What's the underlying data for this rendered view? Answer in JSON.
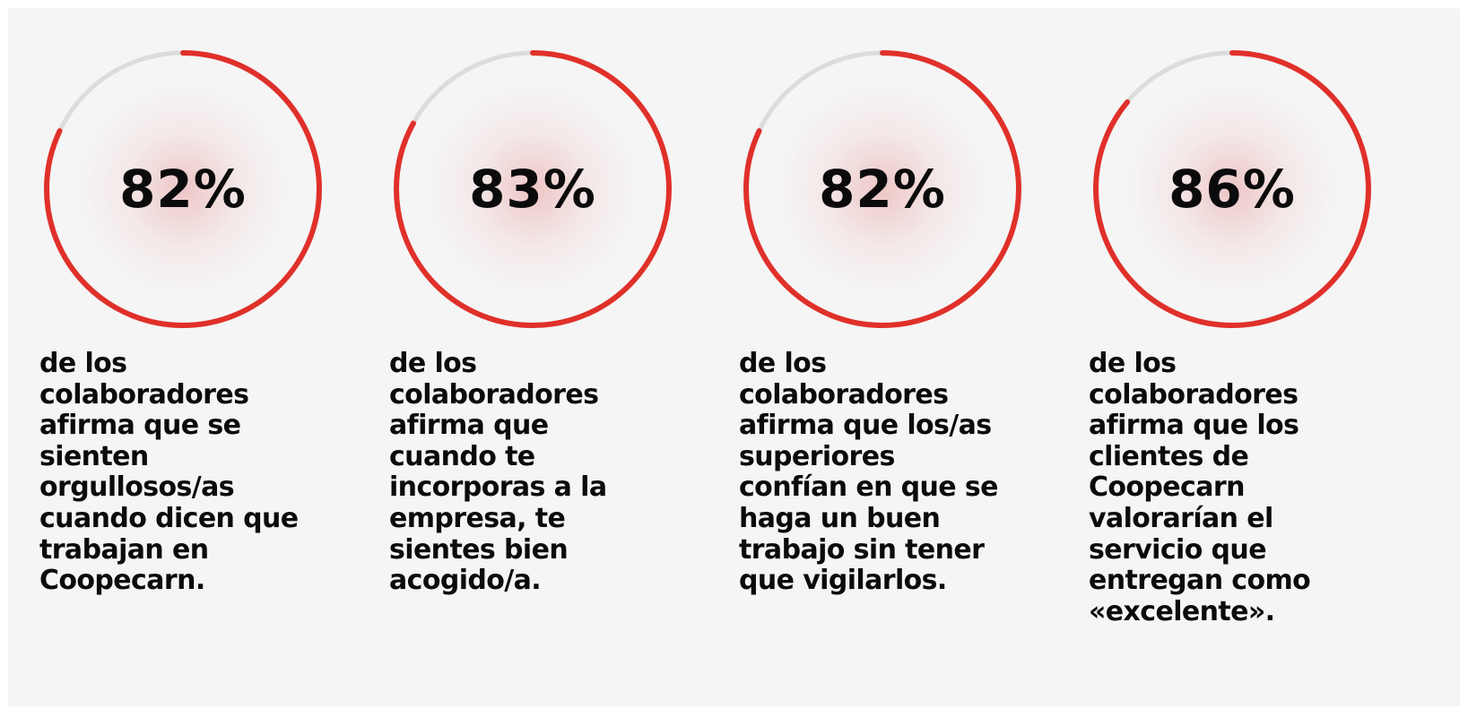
{
  "colors": {
    "background": "#f5f5f5",
    "accent": "#e0302a",
    "track": "#dcdcdc",
    "text": "#0b0b0b"
  },
  "stats": [
    {
      "value": 82,
      "label": "82%",
      "description": "de los\ncolaboradores\nafirma que se\nsienten\norgullosos/as\ncuando dicen que\ntrabajan en\nCoopecarn."
    },
    {
      "value": 83,
      "label": "83%",
      "description": "de los\ncolaboradores\nafirma que\ncuando te\nincorporas a la\nempresa, te\nsientes bien\nacogido/a."
    },
    {
      "value": 82,
      "label": "82%",
      "description": "de los\ncolaboradores\nafirma que los/as\nsuperiores\nconfían en que se\nhaga un buen\ntrabajo sin tener\nque vigilarlos."
    },
    {
      "value": 86,
      "label": "86%",
      "description": "de los\ncolaboradores\nafirma que los\nclientes de\nCoopecarn\nvalorarían el\nservicio que\nentregan como\n«excelente»."
    }
  ]
}
